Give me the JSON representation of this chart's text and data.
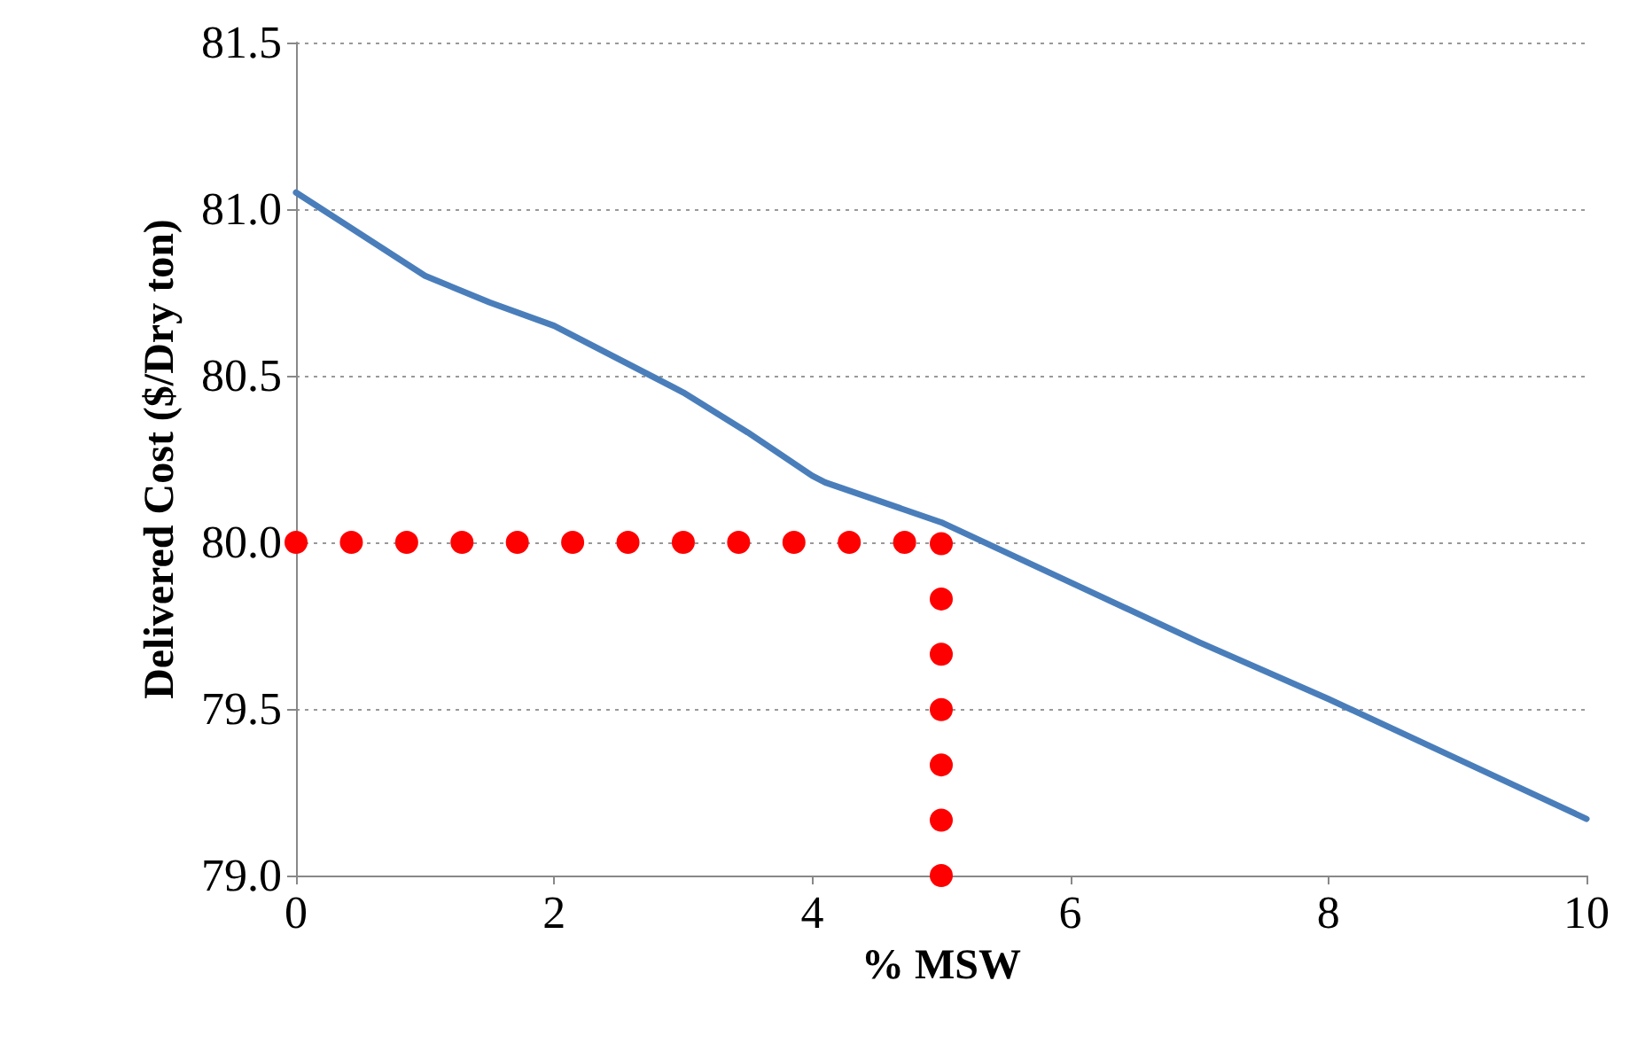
{
  "chart_data": {
    "type": "line",
    "xlabel": "% MSW",
    "ylabel": "Delivered Cost ($/Dry ton)",
    "xlim": [
      0,
      10
    ],
    "xticks": [
      0,
      2,
      4,
      6,
      8,
      10
    ],
    "ylim": [
      79,
      81.5
    ],
    "yticks": [
      {
        "value": 79,
        "label": "79.0"
      },
      {
        "value": 79.5,
        "label": "79.5"
      },
      {
        "value": 80,
        "label": "80.0"
      },
      {
        "value": 80.5,
        "label": "80.5"
      },
      {
        "value": 81,
        "label": "81.0"
      },
      {
        "value": 81.5,
        "label": "81.5"
      }
    ],
    "grid": "y",
    "marker": "none",
    "line_style": "solid",
    "series": [
      {
        "color": "#4a7ebb",
        "x": [
          0,
          1,
          1.5,
          2,
          3,
          3.5,
          4,
          4.1,
          5,
          6,
          7,
          8,
          9,
          10
        ],
        "values": [
          81.05,
          80.8,
          80.72,
          80.65,
          80.45,
          80.33,
          80.2,
          80.18,
          80.06,
          79.88,
          79.7,
          79.53,
          79.35,
          79.17
        ]
      },
      {
        "color": "#ff0000",
        "line_style": "dotted",
        "x": [
          0,
          5
        ],
        "values": [
          80,
          80
        ]
      },
      {
        "color": "#ff0000",
        "line_style": "dotted",
        "x": [
          5,
          5
        ],
        "values": [
          79,
          80
        ]
      }
    ]
  }
}
